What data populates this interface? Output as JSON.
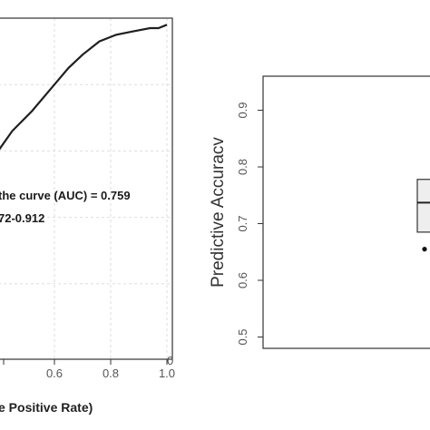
{
  "chart_data": [
    {
      "type": "line",
      "xlabel": "e Positive Rate)",
      "x_ticks": [
        "0.6",
        "0.8",
        "1.0"
      ],
      "x_tick_extra": "0",
      "xlim": [
        0.4,
        1.0
      ],
      "ylim": [
        0.0,
        1.0
      ],
      "grid": true,
      "series": [
        {
          "x": [
            0.4,
            0.45,
            0.52,
            0.6,
            0.65,
            0.7,
            0.76,
            0.82,
            0.88,
            0.94,
            0.97,
            1.0
          ],
          "y": [
            0.6,
            0.66,
            0.72,
            0.8,
            0.85,
            0.89,
            0.93,
            0.95,
            0.96,
            0.97,
            0.97,
            0.98
          ]
        }
      ],
      "annotations": [
        "the curve (AUC) = 0.759",
        "72-0.912"
      ]
    },
    {
      "type": "box",
      "ylabel": "Predictive Accuracv",
      "y_ticks": [
        "0.5",
        "0.6",
        "0.7",
        "0.8",
        "0.9"
      ],
      "ylim": [
        0.48,
        0.96
      ],
      "box": {
        "q1": 0.685,
        "median": 0.737,
        "q3": 0.778
      },
      "outliers": [
        0.655
      ]
    }
  ],
  "colors": {
    "line": "#1f1f1f",
    "grid": "#dddddd",
    "box_fill": "#eeeeee",
    "axis": "#333333"
  }
}
